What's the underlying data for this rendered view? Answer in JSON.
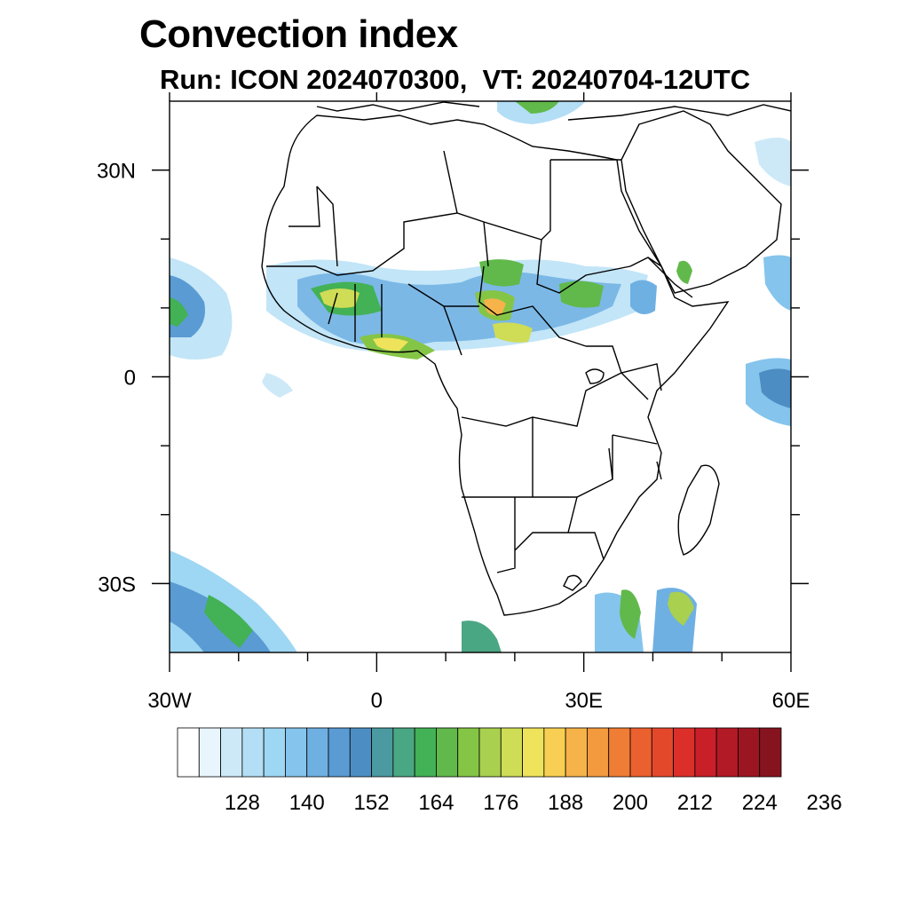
{
  "title": "Convection index",
  "subtitle": "Run: ICON 2024070300,  VT: 20240704-12UTC",
  "map": {
    "lat_labels": [
      {
        "label": "30N",
        "lat": 30
      },
      {
        "label": "0",
        "lat": 0
      },
      {
        "label": "30S",
        "lat": -30
      }
    ],
    "lon_labels": [
      {
        "label": "30W",
        "lon": -30
      },
      {
        "label": "0",
        "lon": 0
      },
      {
        "label": "30E",
        "lon": 30
      },
      {
        "label": "60E",
        "lon": 60
      }
    ],
    "extent": {
      "lon": [
        -30,
        60
      ],
      "lat": [
        -40,
        40
      ]
    },
    "minor_lon_ticks": [
      -20,
      -10,
      10,
      20,
      40,
      50
    ],
    "minor_lat_ticks": [
      20,
      10,
      -10,
      -20
    ]
  },
  "colorbar": {
    "colors": [
      "#ffffff",
      "#e8f5fc",
      "#cde9f8",
      "#b3def5",
      "#9ed7f3",
      "#85c4ec",
      "#6fb0e3",
      "#5a9bd3",
      "#4c8ec3",
      "#4b9aa2",
      "#4aa783",
      "#43b155",
      "#61b94b",
      "#85c546",
      "#a9d04f",
      "#cfdc55",
      "#eee35a",
      "#f8cf52",
      "#f5b34a",
      "#f39a3f",
      "#ef7d35",
      "#eb602f",
      "#e4482b",
      "#dc2f2a",
      "#c81f28",
      "#b21a25",
      "#9c1622",
      "#86141f"
    ],
    "labels": [
      "128",
      "140",
      "152",
      "164",
      "176",
      "188",
      "200",
      "212",
      "224",
      "236"
    ],
    "label_positions": [
      2,
      4,
      6,
      8,
      10,
      12,
      14,
      16,
      18,
      20
    ]
  }
}
